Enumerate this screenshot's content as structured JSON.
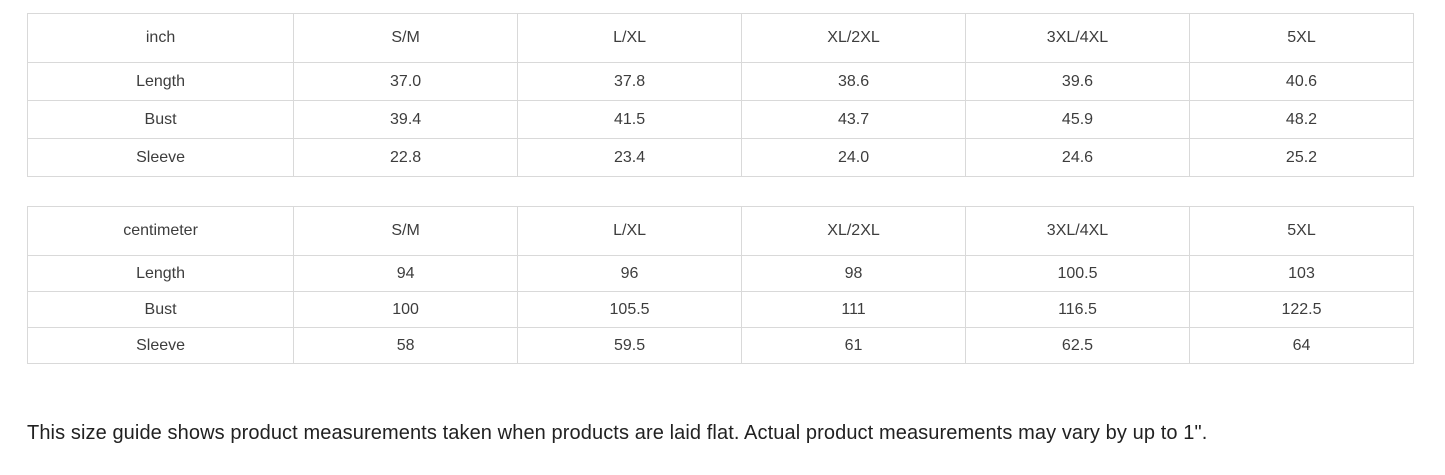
{
  "page": {
    "background": "#ffffff",
    "text_color": "#3d3d3d",
    "border_color": "#d9d9d9"
  },
  "tables": [
    {
      "unit": "inch",
      "header": [
        "inch",
        "S/M",
        "L/XL",
        "XL/2XL",
        "3XL/4XL",
        "5XL"
      ],
      "rows": [
        {
          "label": "Length",
          "values": [
            "37.0",
            "37.8",
            "38.6",
            "39.6",
            "40.6"
          ]
        },
        {
          "label": "Bust",
          "values": [
            "39.4",
            "41.5",
            "43.7",
            "45.9",
            "48.2"
          ]
        },
        {
          "label": "Sleeve",
          "values": [
            "22.8",
            "23.4",
            "24.0",
            "24.6",
            "25.2"
          ]
        }
      ]
    },
    {
      "unit": "centimeter",
      "header": [
        "centimeter",
        "S/M",
        "L/XL",
        "XL/2XL",
        "3XL/4XL",
        "5XL"
      ],
      "rows": [
        {
          "label": "Length",
          "values": [
            "94",
            "96",
            "98",
            "100.5",
            "103"
          ]
        },
        {
          "label": "Bust",
          "values": [
            "100",
            "105.5",
            "111",
            "116.5",
            "122.5"
          ]
        },
        {
          "label": "Sleeve",
          "values": [
            "58",
            "59.5",
            "61",
            "62.5",
            "64"
          ]
        }
      ]
    }
  ],
  "footer": {
    "note": "This size guide shows product measurements taken when products are laid flat. Actual product measurements may vary by up to 1\"."
  }
}
